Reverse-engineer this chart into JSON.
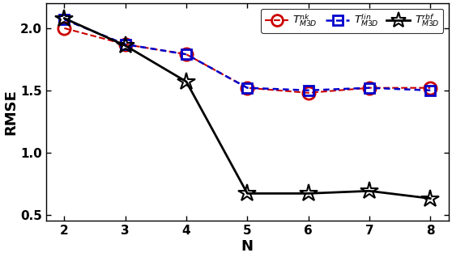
{
  "x": [
    2,
    3,
    4,
    5,
    6,
    7,
    8
  ],
  "y_nk": [
    2.0,
    1.87,
    1.79,
    1.52,
    1.48,
    1.52,
    1.52
  ],
  "y_lin": [
    2.07,
    1.87,
    1.79,
    1.52,
    1.5,
    1.52,
    1.5
  ],
  "y_rbf": [
    2.08,
    1.86,
    1.57,
    0.67,
    0.67,
    0.69,
    0.63
  ],
  "xlabel": "N",
  "ylabel": "RMSE",
  "ylim": [
    0.45,
    2.2
  ],
  "xlim": [
    1.7,
    8.3
  ],
  "color_nk": "#cc0000",
  "color_lin": "#0000cc",
  "color_rbf": "#000000",
  "legend_nk": "$T^{nk}_{M3D}$",
  "legend_lin": "$T^{lin}_{M3D}$",
  "legend_rbf": "$T^{rbf}_{M3D}$",
  "yticks": [
    0.5,
    1.0,
    1.5,
    2.0
  ],
  "xticks": [
    2,
    3,
    4,
    5,
    6,
    7,
    8
  ]
}
